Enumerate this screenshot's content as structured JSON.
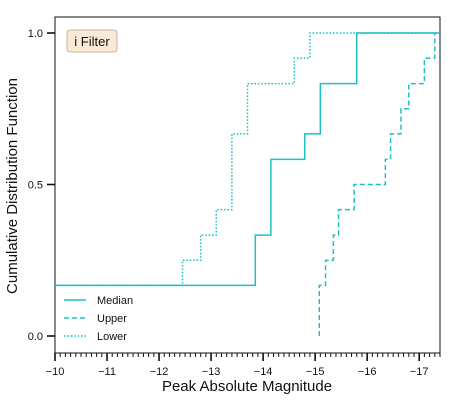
{
  "chart_data": {
    "type": "line",
    "subtype": "step-cdf",
    "annotation": "i Filter",
    "xlabel": "Peak Absolute Magnitude",
    "ylabel": "Cumulative Distribution Function",
    "xlim": [
      -10,
      -17.4
    ],
    "x_inverted": true,
    "ylim": [
      0.0,
      1.0
    ],
    "x_ticks": [
      -10,
      -11,
      -12,
      -13,
      -14,
      -15,
      -16,
      -17
    ],
    "x_tick_labels": [
      "−10",
      "−11",
      "−12",
      "−13",
      "−14",
      "−15",
      "−16",
      "−17"
    ],
    "y_ticks": [
      0.0,
      0.5,
      1.0
    ],
    "y_tick_labels": [
      "0.0",
      "0.5",
      "1.0"
    ],
    "grid": false,
    "legend_position": "bottom-left",
    "series": [
      {
        "name": "Median",
        "style": "solid",
        "color": "#1fc0c4",
        "x": [
          -10.0,
          -13.85,
          -13.85,
          -14.15,
          -14.15,
          -14.8,
          -14.8,
          -15.1,
          -15.1,
          -15.8,
          -15.8,
          -17.4
        ],
        "y": [
          0.167,
          0.167,
          0.333,
          0.333,
          0.583,
          0.583,
          0.667,
          0.667,
          0.833,
          0.833,
          1.0,
          1.0
        ]
      },
      {
        "name": "Upper",
        "style": "dashed",
        "color": "#1fc0c4",
        "x": [
          -15.08,
          -15.08,
          -15.2,
          -15.2,
          -15.35,
          -15.35,
          -15.45,
          -15.45,
          -15.75,
          -15.75,
          -16.35,
          -16.35,
          -16.45,
          -16.45,
          -16.65,
          -16.65,
          -16.8,
          -16.8,
          -17.1,
          -17.1,
          -17.3,
          -17.3
        ],
        "y": [
          0.0,
          0.167,
          0.167,
          0.25,
          0.25,
          0.333,
          0.333,
          0.417,
          0.417,
          0.5,
          0.5,
          0.583,
          0.583,
          0.667,
          0.667,
          0.75,
          0.75,
          0.833,
          0.833,
          0.917,
          0.917,
          1.0
        ]
      },
      {
        "name": "Lower",
        "style": "dotted",
        "color": "#1fc0c4",
        "x": [
          -10.0,
          -12.45,
          -12.45,
          -12.8,
          -12.8,
          -13.1,
          -13.1,
          -13.4,
          -13.4,
          -13.7,
          -13.7,
          -14.6,
          -14.6,
          -14.9,
          -14.9,
          -17.4
        ],
        "y": [
          0.167,
          0.167,
          0.25,
          0.25,
          0.333,
          0.333,
          0.417,
          0.417,
          0.667,
          0.667,
          0.833,
          0.833,
          0.917,
          0.917,
          1.0,
          1.0
        ]
      }
    ]
  }
}
